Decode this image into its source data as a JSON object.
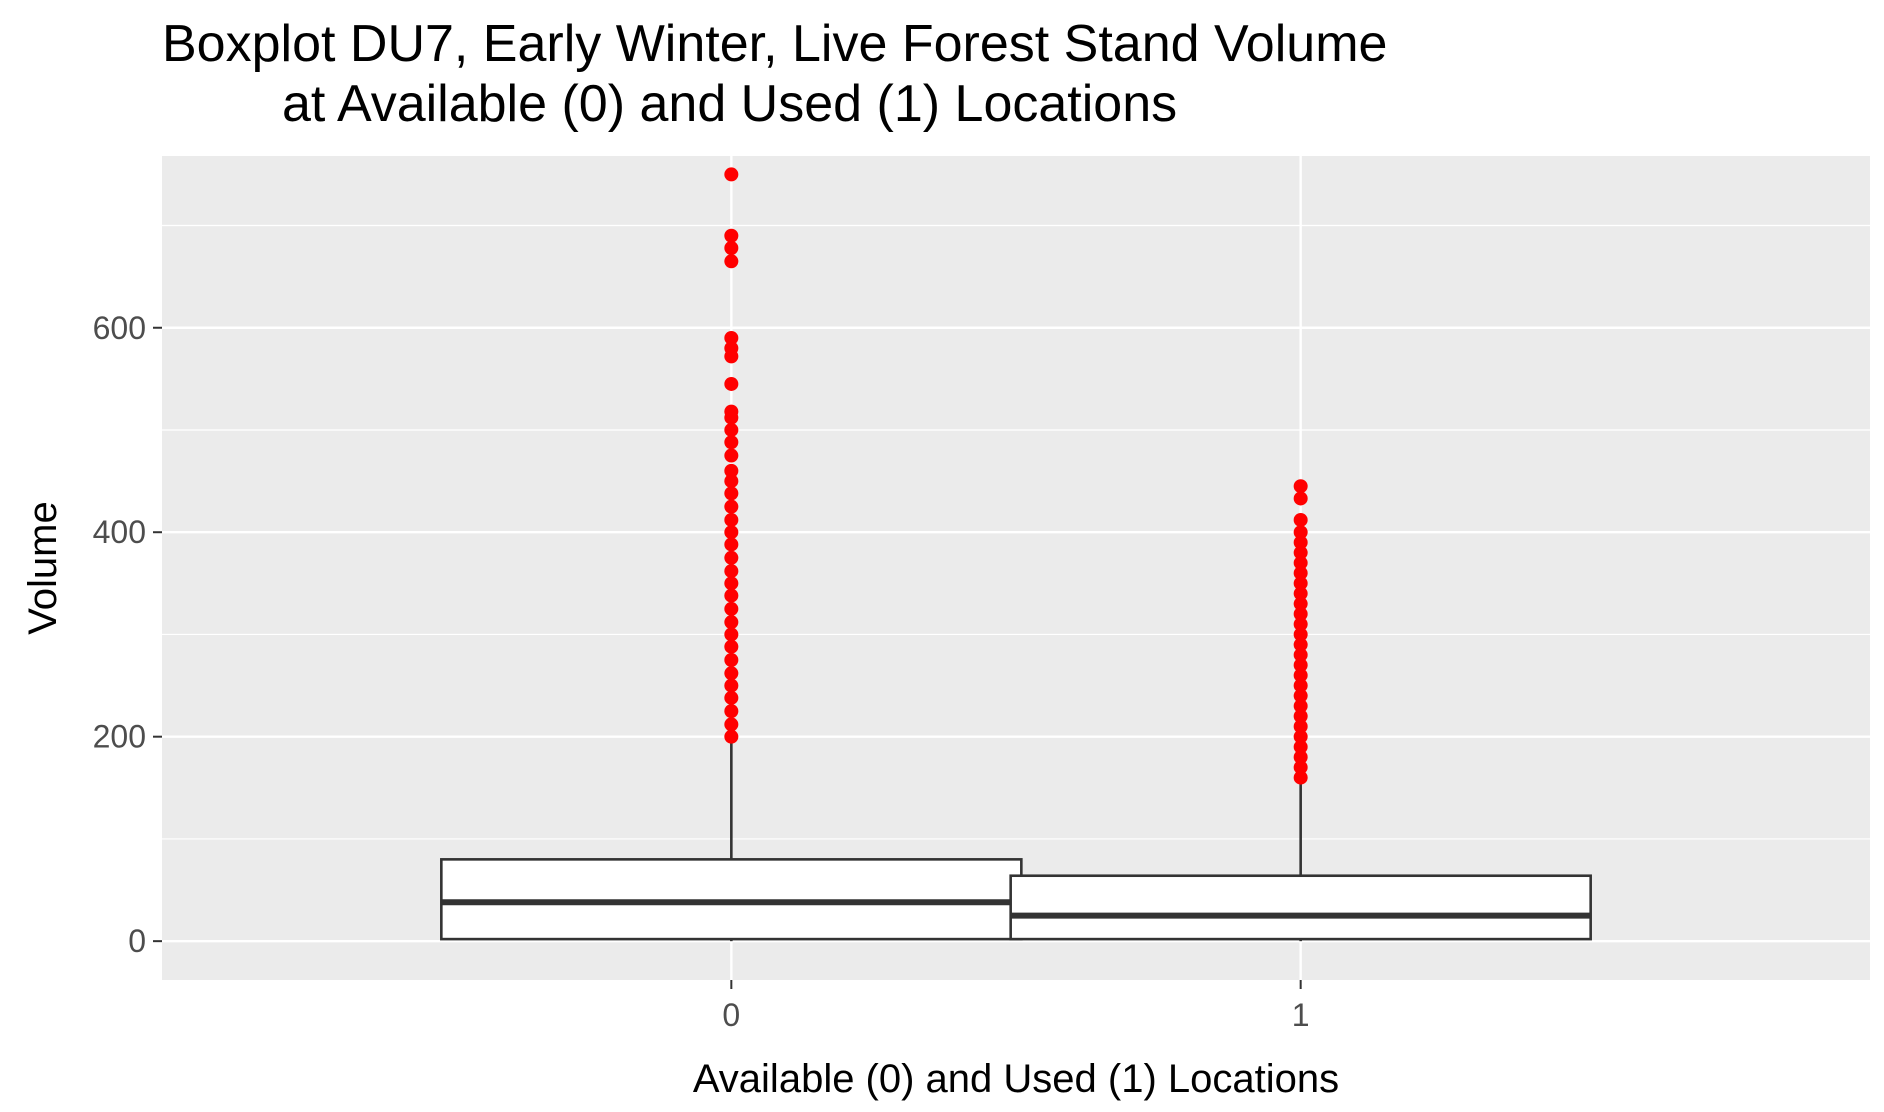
{
  "chart_data": {
    "type": "boxplot",
    "title": "Boxplot DU7, Early Winter, Live Forest Stand Volume",
    "subtitle": "at Available (0) and Used (1) Locations",
    "xlabel": "Available (0) and Used (1) Locations",
    "ylabel": "Volume",
    "categories": [
      "0",
      "1"
    ],
    "ylim": [
      -38,
      768
    ],
    "y_ticks": [
      0,
      200,
      400,
      600
    ],
    "y_tick_labels": [
      "0",
      "200",
      "400",
      "600"
    ],
    "grid": true,
    "boxes": [
      {
        "category": "0",
        "min": 0,
        "q1": 2,
        "median": 38,
        "q3": 80,
        "whisker_high": 197,
        "outliers": [
          200,
          212,
          225,
          238,
          250,
          262,
          275,
          288,
          300,
          312,
          325,
          338,
          350,
          362,
          375,
          388,
          400,
          412,
          425,
          438,
          450,
          460,
          475,
          488,
          500,
          512,
          518,
          545,
          572,
          580,
          590,
          665,
          678,
          690,
          750
        ]
      },
      {
        "category": "1",
        "min": 0,
        "q1": 2,
        "median": 25,
        "q3": 64,
        "whisker_high": 157,
        "outliers": [
          160,
          170,
          180,
          190,
          200,
          210,
          220,
          230,
          240,
          250,
          260,
          270,
          280,
          290,
          300,
          310,
          320,
          330,
          340,
          350,
          360,
          370,
          380,
          390,
          400,
          412,
          433,
          445
        ]
      }
    ],
    "colors": {
      "panel_background": "#EBEBEB",
      "grid_major": "#FFFFFF",
      "box_line": "#333333",
      "box_fill": "#FFFFFF",
      "outlier": "#FF0000",
      "tick_label": "#4D4D4D"
    }
  }
}
